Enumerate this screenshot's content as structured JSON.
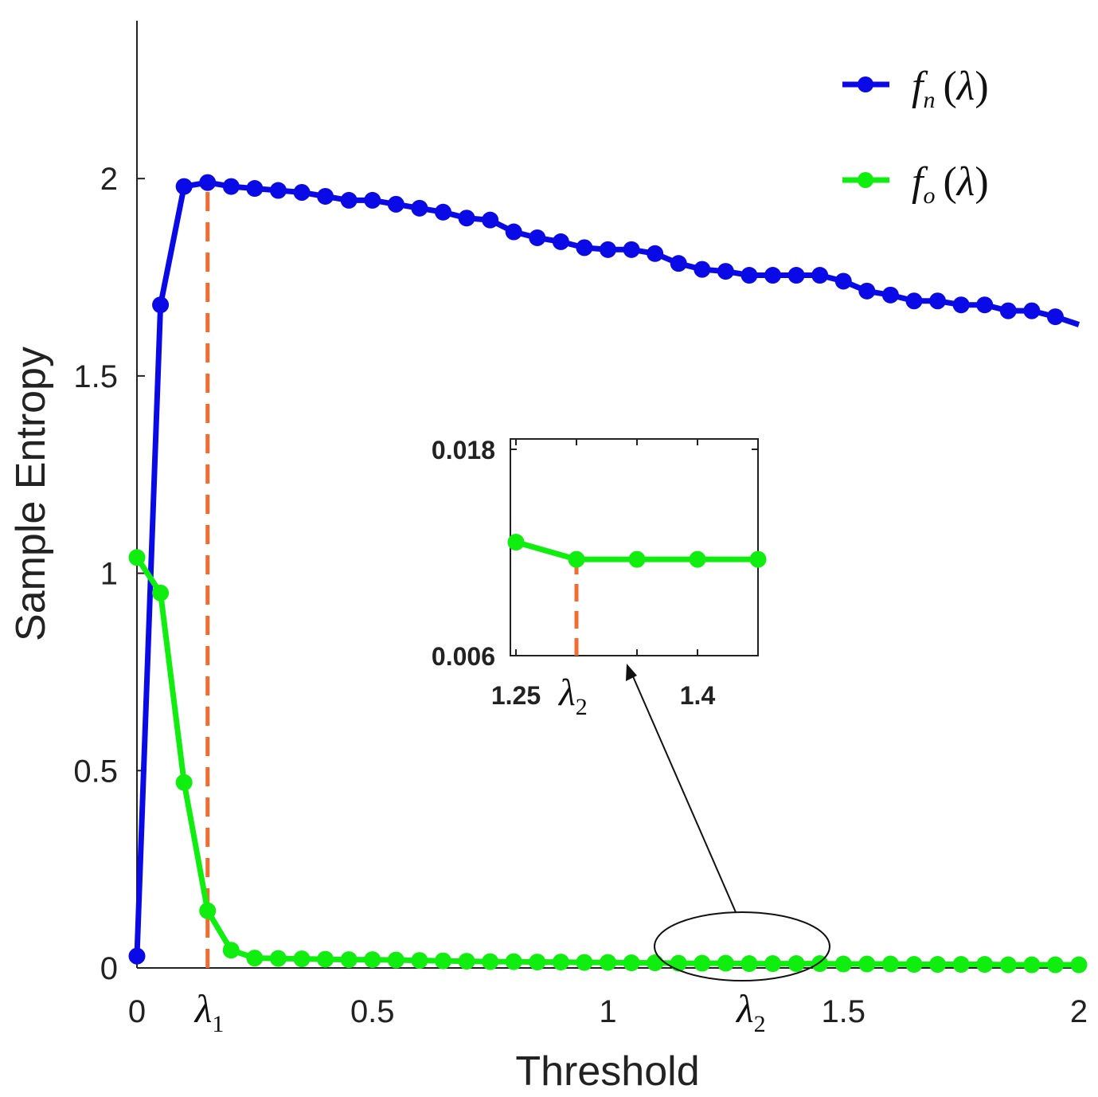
{
  "chart_data": [
    {
      "type": "line",
      "role": "main",
      "xlabel": "Threshold",
      "ylabel": "Sample Entropy",
      "xlim": [
        0,
        2
      ],
      "ylim": [
        0,
        2.4
      ],
      "xticks": [
        {
          "value": 0,
          "label": "0"
        },
        {
          "value": 0.5,
          "label": "0.5"
        },
        {
          "value": 1,
          "label": "1"
        },
        {
          "value": 1.5,
          "label": "1.5"
        },
        {
          "value": 2,
          "label": "2"
        }
      ],
      "yticks": [
        {
          "value": 0,
          "label": "0"
        },
        {
          "value": 0.5,
          "label": "0.5"
        },
        {
          "value": 1,
          "label": "1"
        },
        {
          "value": 1.5,
          "label": "1.5"
        },
        {
          "value": 2,
          "label": "2"
        }
      ],
      "markers": [
        {
          "symbol": "λ",
          "subscript": "1",
          "x": 0.15
        },
        {
          "symbol": "λ",
          "subscript": "2",
          "x": 1.3
        }
      ],
      "vline": {
        "x": 0.15,
        "y_top": 1.99,
        "color": "#f26b2f"
      },
      "legend_location": "top-right",
      "series": [
        {
          "name": "fn(λ)",
          "legend_f": "f",
          "legend_sub": "n",
          "legend_arg": "λ",
          "color": "#0a0ae6",
          "x": [
            0,
            0.05,
            0.1,
            0.15,
            0.2,
            0.25,
            0.3,
            0.35,
            0.4,
            0.45,
            0.5,
            0.55,
            0.6,
            0.65,
            0.7,
            0.75,
            0.8,
            0.85,
            0.9,
            0.95,
            1.0,
            1.05,
            1.1,
            1.15,
            1.2,
            1.25,
            1.3,
            1.35,
            1.4,
            1.45,
            1.5,
            1.55,
            1.6,
            1.65,
            1.7,
            1.75,
            1.8,
            1.85,
            1.9,
            1.95,
            2.0
          ],
          "y": [
            0.03,
            1.68,
            1.98,
            1.99,
            1.98,
            1.975,
            1.97,
            1.965,
            1.955,
            1.945,
            1.945,
            1.935,
            1.925,
            1.915,
            1.9,
            1.895,
            1.865,
            1.85,
            1.84,
            1.825,
            1.82,
            1.82,
            1.81,
            1.785,
            1.77,
            1.765,
            1.755,
            1.755,
            1.755,
            1.755,
            1.74,
            1.715,
            1.705,
            1.69,
            1.69,
            1.68,
            1.68,
            1.665,
            1.665,
            1.65,
            1.63
          ],
          "markers_until_index": 39
        },
        {
          "name": "fo(λ)",
          "legend_f": "f",
          "legend_sub": "o",
          "legend_arg": "λ",
          "color": "#10ee10",
          "x": [
            0,
            0.05,
            0.1,
            0.15,
            0.2,
            0.25,
            0.3,
            0.35,
            0.4,
            0.45,
            0.5,
            0.55,
            0.6,
            0.65,
            0.7,
            0.75,
            0.8,
            0.85,
            0.9,
            0.95,
            1.0,
            1.05,
            1.1,
            1.15,
            1.2,
            1.25,
            1.3,
            1.35,
            1.4,
            1.45,
            1.5,
            1.55,
            1.6,
            1.65,
            1.7,
            1.75,
            1.8,
            1.85,
            1.9,
            1.95,
            2.0
          ],
          "y": [
            1.04,
            0.95,
            0.47,
            0.145,
            0.045,
            0.025,
            0.024,
            0.023,
            0.022,
            0.021,
            0.021,
            0.02,
            0.019,
            0.018,
            0.017,
            0.016,
            0.016,
            0.015,
            0.015,
            0.014,
            0.014,
            0.013,
            0.013,
            0.012,
            0.012,
            0.012,
            0.011,
            0.011,
            0.011,
            0.011,
            0.01,
            0.01,
            0.01,
            0.009,
            0.009,
            0.009,
            0.009,
            0.008,
            0.008,
            0.008,
            0.008
          ],
          "markers_until_index": 40
        }
      ]
    },
    {
      "type": "line",
      "role": "inset",
      "xlim": [
        1.25,
        1.45
      ],
      "ylim": [
        0.006,
        0.018
      ],
      "xtick_labels": [
        {
          "value": 1.25,
          "label": "1.25"
        },
        {
          "value": 1.4,
          "label": "1.4"
        }
      ],
      "xtick_marks": [
        1.25,
        1.3,
        1.35,
        1.4,
        1.45
      ],
      "yticks": [
        {
          "value": 0.018,
          "label": "0.018"
        },
        {
          "value": 0.006,
          "label": "0.006"
        }
      ],
      "marker": {
        "symbol": "λ",
        "subscript": "2",
        "x": 1.3
      },
      "vline": {
        "x": 1.3,
        "y_top": 0.0116,
        "color": "#f26b2f"
      },
      "series": [
        {
          "name": "fo(λ) zoom",
          "color": "#10ee10",
          "x": [
            1.25,
            1.3,
            1.35,
            1.4,
            1.45
          ],
          "y": [
            0.0126,
            0.0116,
            0.0116,
            0.0116,
            0.0116
          ]
        }
      ]
    }
  ]
}
